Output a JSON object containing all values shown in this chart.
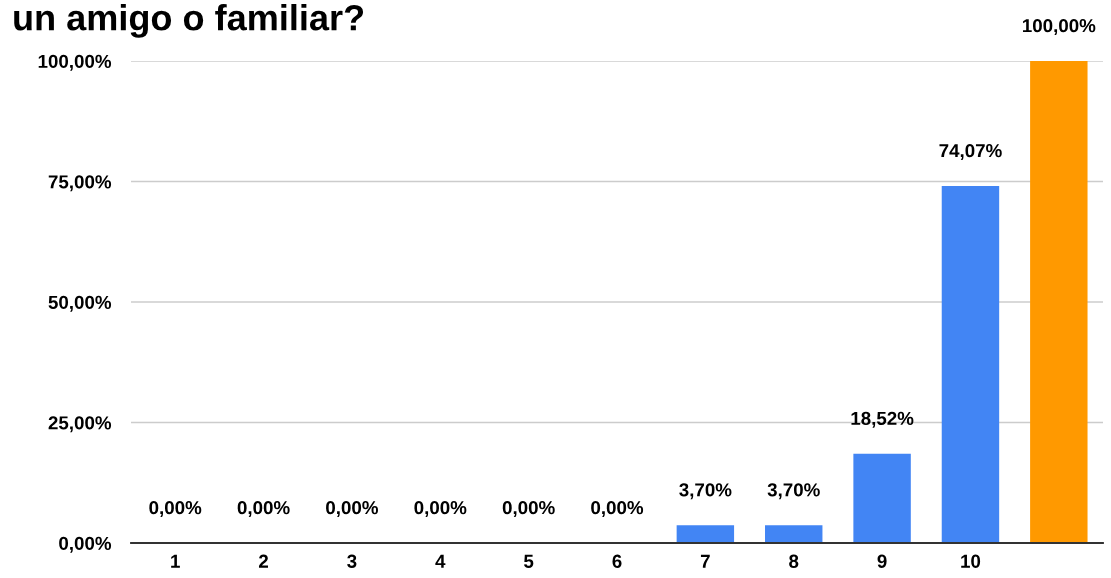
{
  "chart_data": {
    "type": "bar",
    "title": "un amigo o familiar?",
    "categories": [
      "1",
      "2",
      "3",
      "4",
      "5",
      "6",
      "7",
      "8",
      "9",
      "10",
      null
    ],
    "values": [
      0,
      0,
      0,
      0,
      0,
      0,
      3.7,
      3.7,
      18.52,
      74.07,
      100.0
    ],
    "colors": [
      "#4285f4",
      "#4285f4",
      "#4285f4",
      "#4285f4",
      "#4285f4",
      "#4285f4",
      "#4285f4",
      "#4285f4",
      "#4285f4",
      "#4285f4",
      "#ff9900"
    ],
    "value_labels": [
      "0,00%",
      "0,00%",
      "0,00%",
      "0,00%",
      "0,00%",
      "0,00%",
      "3,70%",
      "3,70%",
      "18,52%",
      "74,07%",
      "100,00%"
    ],
    "ylim": [
      0,
      100
    ],
    "yticks": [
      {
        "value": 0,
        "label": "0,00%"
      },
      {
        "value": 25,
        "label": "25,00%"
      },
      {
        "value": 50,
        "label": "50,00%"
      },
      {
        "value": 75,
        "label": "75,00%"
      },
      {
        "value": 100,
        "label": "100,00%"
      }
    ],
    "grid": "y"
  }
}
